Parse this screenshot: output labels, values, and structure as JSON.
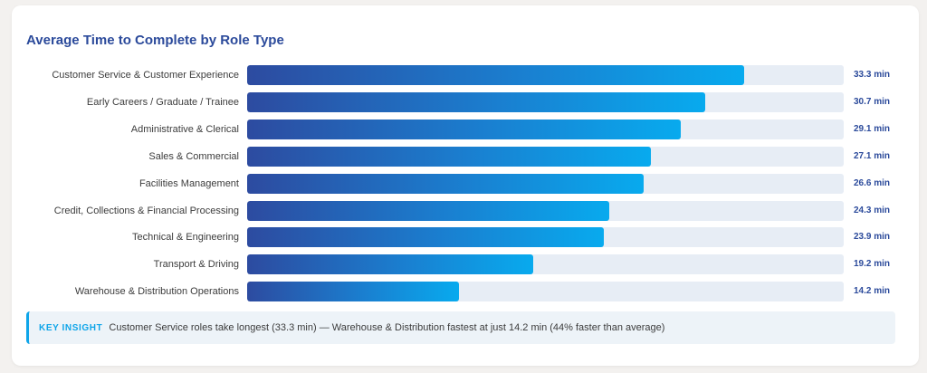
{
  "chart_data": {
    "type": "bar",
    "orientation": "horizontal",
    "title": "Average Time to Complete by Role Type",
    "categories": [
      "Customer Service & Customer Experience",
      "Early Careers / Graduate / Trainee",
      "Administrative & Clerical",
      "Sales & Commercial",
      "Facilities Management",
      "Credit, Collections & Financial Processing",
      "Technical & Engineering",
      "Transport & Driving",
      "Warehouse & Distribution Operations"
    ],
    "values": [
      33.3,
      30.7,
      29.1,
      27.1,
      26.6,
      24.3,
      23.9,
      19.2,
      14.2
    ],
    "value_labels": [
      "33.3 min",
      "30.7 min",
      "29.1 min",
      "27.1 min",
      "26.6 min",
      "24.3 min",
      "23.9 min",
      "19.2 min",
      "14.2 min"
    ],
    "xlim": [
      0,
      40
    ],
    "grid": false,
    "colors": {
      "bar_start": "#2d4ba0",
      "bar_end": "#08aaee",
      "track": "#e7edf5",
      "value_text": "#2b4a9b"
    }
  },
  "insight": {
    "label": "KEY INSIGHT",
    "text": "Customer Service roles take longest (33.3 min) — Warehouse & Distribution fastest at just 14.2 min (44% faster than average)"
  }
}
